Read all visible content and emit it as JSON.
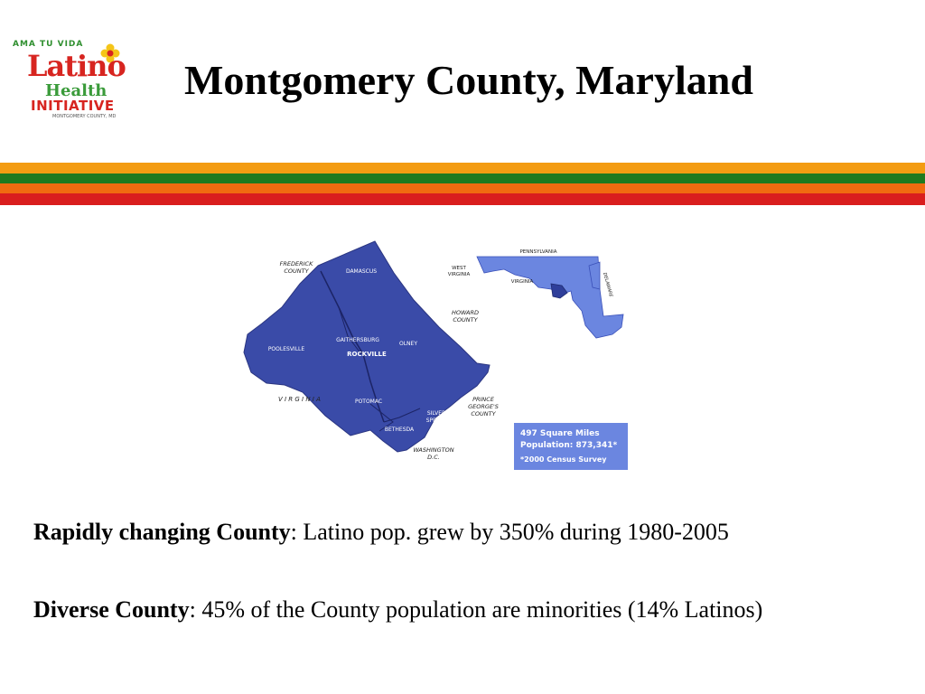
{
  "logo": {
    "arc_text": "AMA TU VIDA",
    "word1": "Latino",
    "word2": "Health",
    "word3": "INITIATIVE",
    "subtitle": "MONTGOMERY COUNTY, MD"
  },
  "title": "Montgomery County, Maryland",
  "map": {
    "county_labels": {
      "frederick": [
        "FREDERICK",
        "COUNTY"
      ],
      "howard": [
        "HOWARD",
        "COUNTY"
      ],
      "prince_georges": [
        "PRINCE",
        "GEORGE'S",
        "COUNTY"
      ],
      "washington": [
        "WASHINGTON",
        "D.C."
      ],
      "virginia": "V I R G I N I A"
    },
    "towns": {
      "damascus": "DAMASCUS",
      "gaithersburg": "GAITHERSBURG",
      "rockville": "ROCKVILLE",
      "olney": "OLNEY",
      "poolesville": "POOLESVILLE",
      "potomac": "POTOMAC",
      "silver_spring": [
        "SILVER",
        "SPRING"
      ],
      "bethesda": "BETHESDA"
    },
    "inset": {
      "pennsylvania": "PENNSYLVANIA",
      "west_virginia": [
        "WEST",
        "VIRGINIA"
      ],
      "virginia": "VIRGINIA",
      "delaware": "DELAWARE"
    },
    "stats": {
      "line1": "497 Square Miles",
      "line2": "Population: 873,341*",
      "line3": "*2000 Census Survey"
    },
    "colors": {
      "county": "#3a4ba8",
      "state": "#6b86e0",
      "highlight": "#2f3f9a",
      "stats_box": "#6b86e0"
    }
  },
  "bullets": [
    {
      "label": "Rapidly changing County",
      "text": ": Latino pop. grew by 350% during 1980-2005"
    },
    {
      "label": "Diverse County",
      "text": ": 45% of  the County population are minorities (14% Latinos)"
    }
  ]
}
